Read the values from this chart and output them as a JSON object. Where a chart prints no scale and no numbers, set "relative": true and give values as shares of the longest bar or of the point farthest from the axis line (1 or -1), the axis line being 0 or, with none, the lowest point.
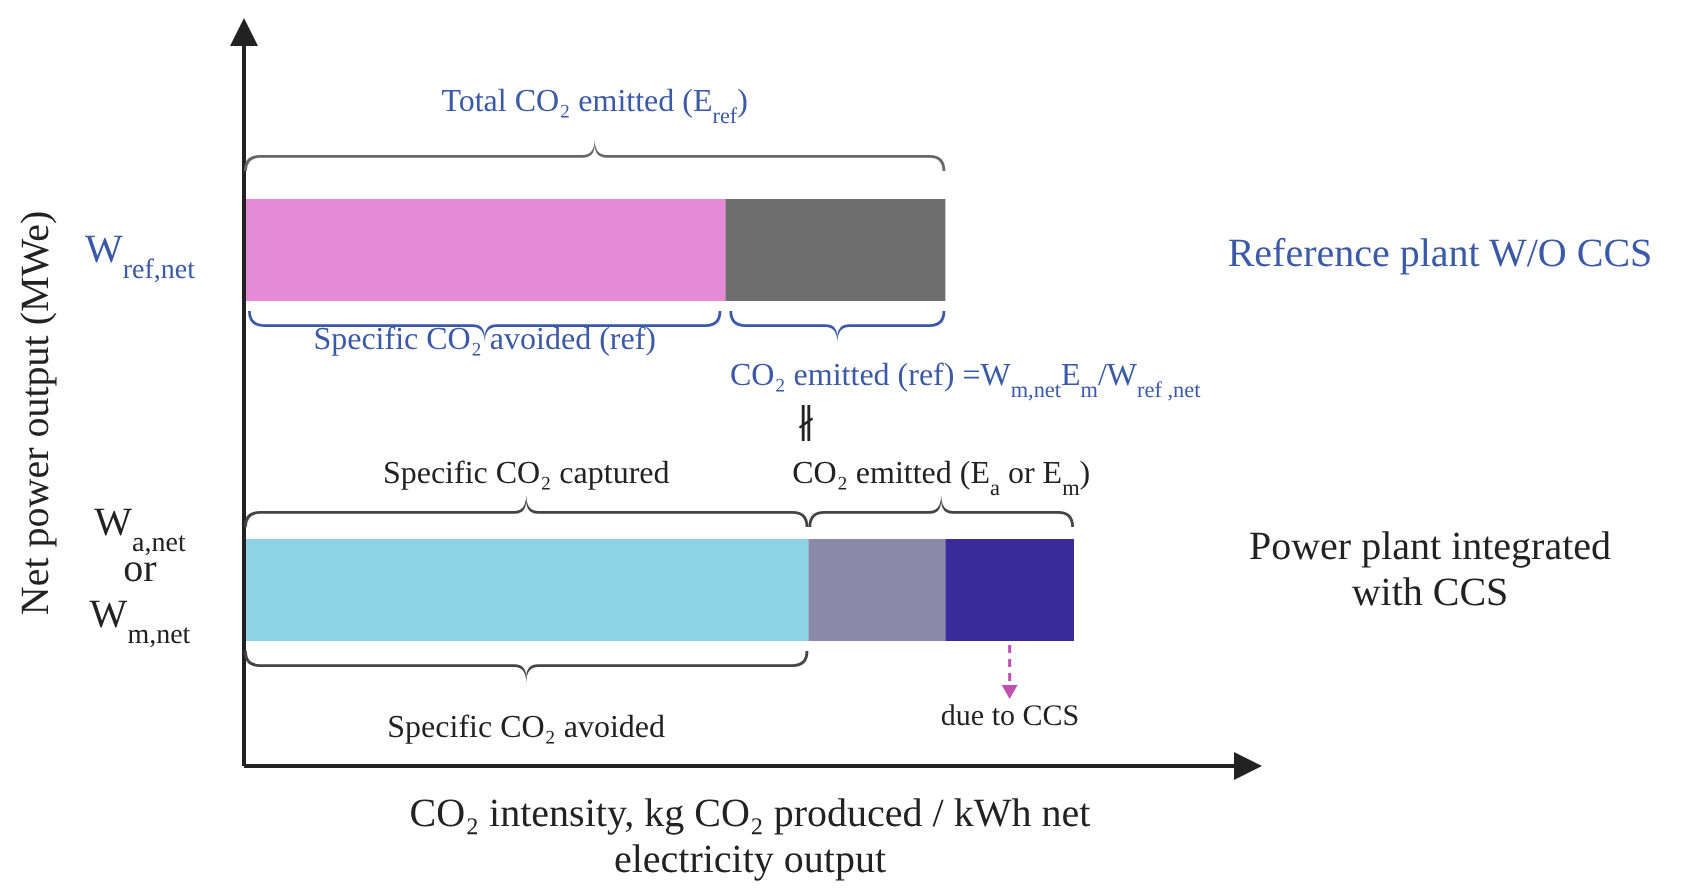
{
  "chart_data": {
    "type": "bar",
    "orientation": "horizontal",
    "stacked": true,
    "relative": true,
    "categories": [
      "W$_{ref,net}$",
      "W$_{a,net}$\nor\nW$_{m,net}$"
    ],
    "series": [
      {
        "colors": [
          "#e58ad6",
          "#8fd3e6"
        ],
        "values": [
          0.58,
          0.68
        ]
      },
      {
        "colors": [
          "#6e6e6e",
          "#8a8aa8"
        ],
        "values": [
          0.265,
          0.165
        ]
      },
      {
        "colors": [
          "#3a2a9a",
          "#3a2a9a"
        ],
        "values": [
          null,
          0.155
        ]
      }
    ],
    "xlabel": "CO₂ intensity, kg CO₂ produced / kWh net\nelectricity output",
    "ylabel": "Net power output (MWe)",
    "annotations": [
      "Total CO₂ emitted (E$_{ref}$)",
      "Reference plant W/O CCS",
      "Specific CO₂ avoided (ref)",
      "CO₂ emitted (ref) =W$_{m,net}$E$_{m}$/W$_{ref ,net}$",
      "∦",
      "Specific CO₂ captured",
      "CO₂ emitted (E$_{a}$ or E$_{m}$)",
      "Power plant integrated\nwith CCS",
      "Specific CO₂ avoided",
      "due to CCS"
    ]
  }
}
